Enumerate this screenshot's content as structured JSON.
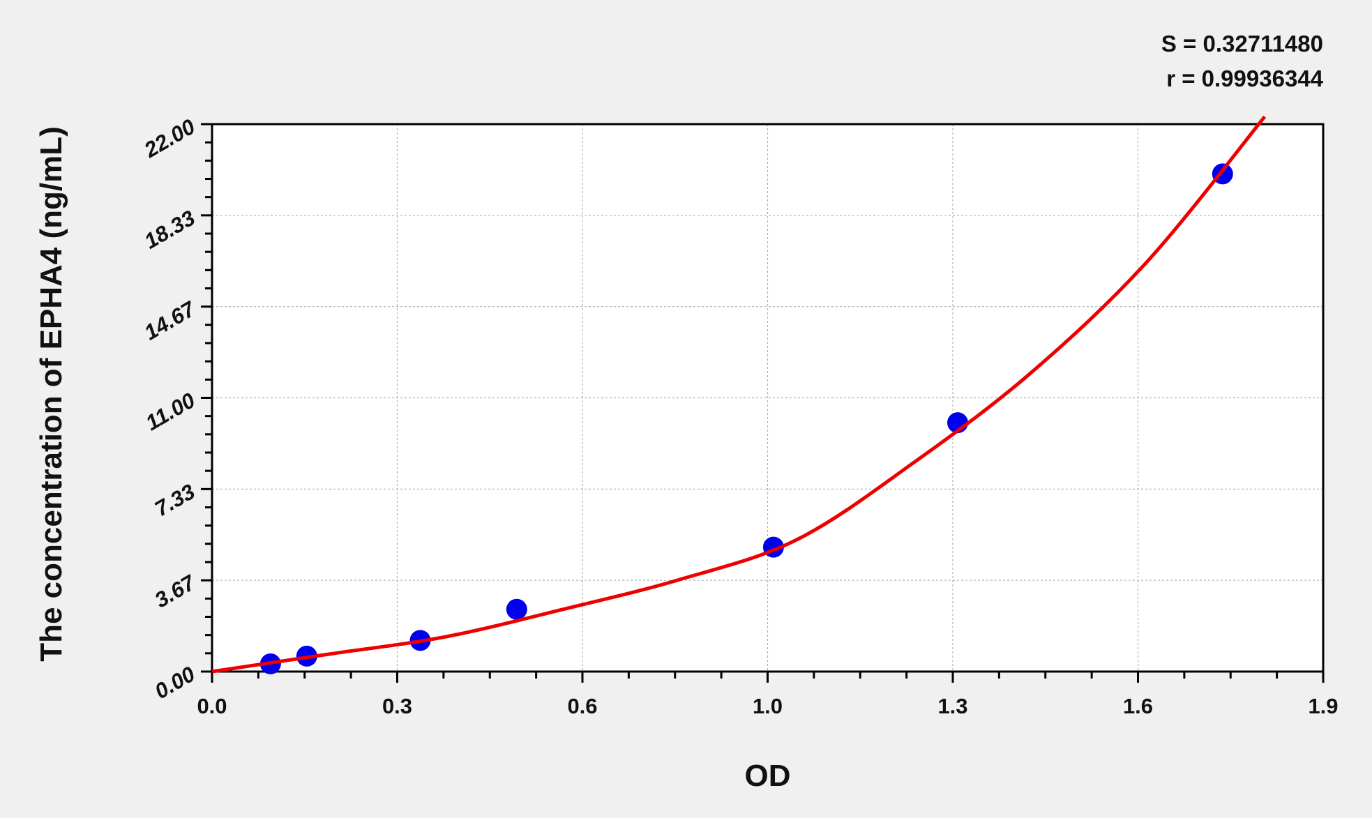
{
  "chart_data": {
    "type": "scatter",
    "xlabel": "OD",
    "ylabel": "The concentration of EPHA4 (ng/mL)",
    "xlim": [
      0,
      1.9
    ],
    "ylim": [
      0,
      22
    ],
    "x_tick_labels": [
      "0.0",
      "0.3",
      "0.6",
      "1.0",
      "1.3",
      "1.6",
      "1.9"
    ],
    "y_tick_labels": [
      "0.00",
      "3.67",
      "7.33",
      "11.00",
      "14.67",
      "18.33",
      "22.00"
    ],
    "grid": true,
    "annotations": {
      "s": "S = 0.32711480",
      "r": "r = 0.99936344"
    },
    "points": {
      "x": [
        0.1,
        0.162,
        0.356,
        0.521,
        0.96,
        1.275,
        1.728
      ],
      "y": [
        0.31,
        0.62,
        1.25,
        2.5,
        5,
        10,
        20
      ]
    },
    "fit_curve": {
      "x": [
        0,
        0.2,
        0.4,
        0.6,
        0.8,
        1.0,
        1.2,
        1.4,
        1.6,
        1.8
      ],
      "y": [
        0,
        0.7,
        1.4,
        2.5,
        3.7,
        5.3,
        8.4,
        12.0,
        16.5,
        22.3
      ]
    },
    "colors": {
      "points": "#0000ee",
      "curve": "#ee0000",
      "grid": "#b0b0b0"
    }
  }
}
